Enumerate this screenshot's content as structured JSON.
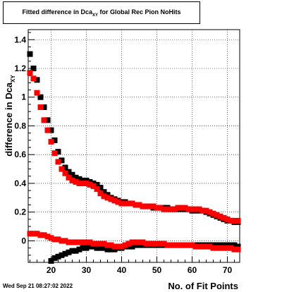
{
  "chart_data": {
    "type": "scatter",
    "title_main": "Fitted difference in Dca",
    "title_sub": "XY",
    "title_rest": " for Global Rec Pion NoHits",
    "xlabel": "No. of Fit Points",
    "ylabel_main": "difference in Dca",
    "ylabel_sub": "XY",
    "xlim": [
      13.5,
      73.5
    ],
    "ylim": [
      -0.15,
      1.47
    ],
    "xticks": [
      20,
      30,
      40,
      50,
      60,
      70
    ],
    "yticks": [
      0,
      0.2,
      0.4,
      0.6,
      0.8,
      1,
      1.2,
      1.4
    ],
    "xtick_labels": [
      "20",
      "30",
      "40",
      "50",
      "60",
      "70"
    ],
    "ytick_labels": [
      "0",
      "0.2",
      "0.4",
      "0.6",
      "0.8",
      "1",
      "1.2",
      "1.4"
    ],
    "grid": true,
    "series": [
      {
        "color": "#000000",
        "x": [
          14,
          15,
          16,
          17,
          18,
          19,
          20,
          21,
          22,
          23,
          24,
          25,
          26,
          27,
          28,
          29,
          30,
          31,
          32,
          33,
          34,
          35,
          36,
          37,
          38,
          39,
          40,
          41,
          42,
          43,
          44,
          45,
          46,
          47,
          48,
          49,
          50,
          51,
          52,
          53,
          54,
          55,
          56,
          57,
          58,
          59,
          60,
          61,
          62,
          63,
          64,
          65,
          66,
          67,
          68,
          69,
          70,
          71,
          72,
          73
        ],
        "y": [
          1.3,
          1.2,
          1.12,
          1.0,
          0.93,
          0.84,
          0.77,
          0.7,
          0.62,
          0.56,
          0.51,
          0.48,
          0.46,
          0.44,
          0.43,
          0.42,
          0.42,
          0.41,
          0.4,
          0.39,
          0.37,
          0.34,
          0.32,
          0.3,
          0.29,
          0.28,
          0.27,
          0.27,
          0.26,
          0.26,
          0.25,
          0.25,
          0.24,
          0.24,
          0.24,
          0.23,
          0.23,
          0.23,
          0.23,
          0.23,
          0.22,
          0.22,
          0.22,
          0.22,
          0.22,
          0.22,
          0.21,
          0.21,
          0.21,
          0.21,
          0.2,
          0.19,
          0.18,
          0.17,
          0.16,
          0.15,
          0.14,
          0.14,
          0.13,
          0.13
        ]
      },
      {
        "color": "#ff0000",
        "x": [
          14,
          15,
          16,
          17,
          18,
          19,
          20,
          21,
          22,
          23,
          24,
          25,
          26,
          27,
          28,
          29,
          30,
          31,
          32,
          33,
          34,
          35,
          36,
          37,
          38,
          39,
          40,
          41,
          42,
          43,
          44,
          45,
          46,
          47,
          48,
          49,
          50,
          51,
          52,
          53,
          54,
          55,
          56,
          57,
          58,
          59,
          60,
          61,
          62,
          63,
          64,
          65,
          66,
          67,
          68,
          69,
          70,
          71,
          72,
          73
        ],
        "y": [
          1.17,
          1.13,
          1.03,
          0.93,
          0.84,
          0.77,
          0.69,
          0.61,
          0.55,
          0.5,
          0.47,
          0.44,
          0.42,
          0.41,
          0.4,
          0.4,
          0.4,
          0.39,
          0.38,
          0.36,
          0.33,
          0.31,
          0.3,
          0.29,
          0.28,
          0.27,
          0.26,
          0.26,
          0.26,
          0.26,
          0.25,
          0.25,
          0.24,
          0.24,
          0.24,
          0.24,
          0.23,
          0.23,
          0.22,
          0.22,
          0.22,
          0.22,
          0.23,
          0.23,
          0.23,
          0.22,
          0.22,
          0.22,
          0.22,
          0.21,
          0.21,
          0.2,
          0.19,
          0.18,
          0.17,
          0.16,
          0.15,
          0.14,
          0.14,
          0.14
        ]
      },
      {
        "color": "#000000",
        "x": [
          20,
          21,
          22,
          23,
          24,
          25,
          26,
          27,
          28,
          29,
          30,
          31,
          32,
          33,
          34,
          35,
          36,
          37,
          38,
          39,
          40,
          41,
          42,
          43,
          44,
          45,
          46,
          47,
          48,
          49,
          50,
          51,
          52,
          53,
          54,
          55,
          56,
          57,
          58,
          59,
          60,
          61,
          62,
          63,
          64,
          65,
          66,
          67,
          68,
          69,
          70,
          71,
          72,
          73
        ],
        "y": [
          -0.14,
          -0.12,
          -0.11,
          -0.1,
          -0.09,
          -0.08,
          -0.07,
          -0.07,
          -0.06,
          -0.05,
          -0.05,
          -0.04,
          -0.04,
          -0.05,
          -0.05,
          -0.05,
          -0.06,
          -0.06,
          -0.06,
          -0.05,
          -0.05,
          -0.04,
          -0.04,
          -0.04,
          -0.03,
          -0.03,
          -0.03,
          -0.03,
          -0.03,
          -0.03,
          -0.03,
          -0.03,
          -0.03,
          -0.03,
          -0.03,
          -0.03,
          -0.03,
          -0.03,
          -0.03,
          -0.03,
          -0.03,
          -0.03,
          -0.03,
          -0.03,
          -0.03,
          -0.03,
          -0.03,
          -0.03,
          -0.03,
          -0.03,
          -0.03,
          -0.03,
          -0.03,
          -0.04
        ]
      },
      {
        "color": "#ff0000",
        "x": [
          14,
          15,
          16,
          17,
          18,
          19,
          20,
          21,
          22,
          23,
          24,
          25,
          26,
          27,
          28,
          29,
          30,
          31,
          32,
          33,
          34,
          35,
          36,
          37,
          38,
          39,
          40,
          41,
          42,
          43,
          44,
          45,
          46,
          47,
          48,
          49,
          50,
          51,
          52,
          53,
          54,
          55,
          56,
          57,
          58,
          59,
          60,
          61,
          62,
          63,
          64,
          65,
          66,
          67,
          68,
          69,
          70,
          71,
          72,
          73
        ],
        "y": [
          0.05,
          0.05,
          0.05,
          0.04,
          0.04,
          0.03,
          0.02,
          0.01,
          0.01,
          0.0,
          0.0,
          -0.01,
          -0.01,
          -0.01,
          -0.01,
          -0.01,
          -0.01,
          -0.01,
          -0.02,
          -0.02,
          -0.02,
          -0.02,
          -0.03,
          -0.03,
          -0.04,
          -0.04,
          -0.04,
          -0.03,
          -0.02,
          -0.01,
          -0.01,
          -0.01,
          -0.01,
          -0.02,
          -0.02,
          -0.02,
          -0.02,
          -0.02,
          -0.02,
          -0.03,
          -0.03,
          -0.03,
          -0.03,
          -0.03,
          -0.03,
          -0.03,
          -0.03,
          -0.04,
          -0.04,
          -0.04,
          -0.04,
          -0.04,
          -0.05,
          -0.05,
          -0.05,
          -0.05,
          -0.05,
          -0.05,
          -0.06,
          -0.06
        ]
      }
    ]
  },
  "footer": {
    "timestamp": "Wed Sep 21 08:27:02 2022"
  }
}
